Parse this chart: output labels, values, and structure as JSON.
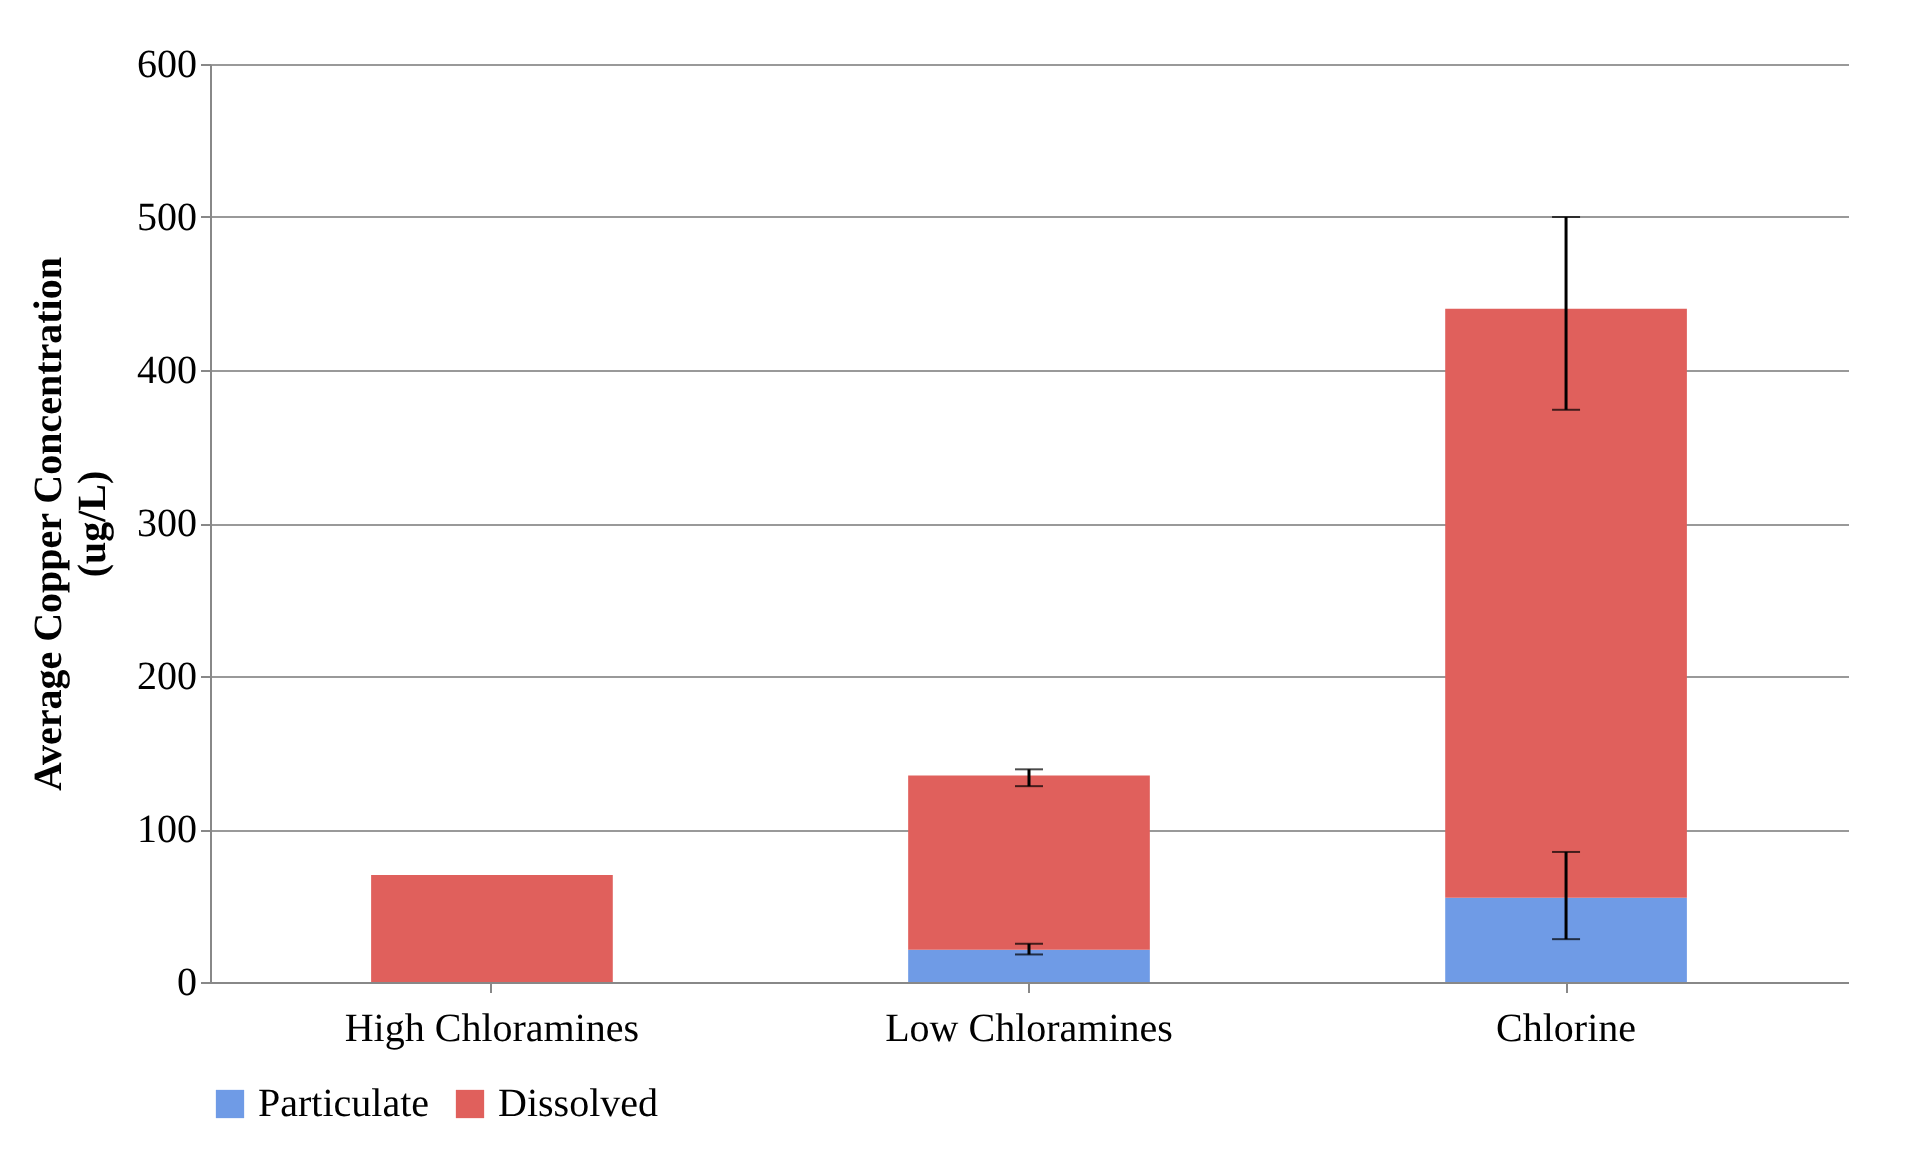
{
  "chart_data": {
    "type": "bar",
    "ylabel": "Average Copper Concentration (ug/L)",
    "categories": [
      "High Chloramines",
      "Low Chloramines",
      "Chlorine"
    ],
    "stacked": true,
    "series": [
      {
        "name": "Particulate",
        "color": "#6f9be6",
        "values": [
          0,
          21,
          55
        ],
        "errors": [
          null,
          [
            18,
            25
          ],
          [
            28,
            85
          ]
        ]
      },
      {
        "name": "Dissolved",
        "color": "#e0605c",
        "values": [
          70,
          114,
          385
        ],
        "errors": [
          null,
          [
            128,
            139
          ],
          [
            374,
            500
          ]
        ]
      }
    ],
    "ylim": [
      0,
      600
    ],
    "yticks": [
      0,
      100,
      200,
      300,
      400,
      500,
      600
    ],
    "grid": "y",
    "legend": "bottom"
  }
}
